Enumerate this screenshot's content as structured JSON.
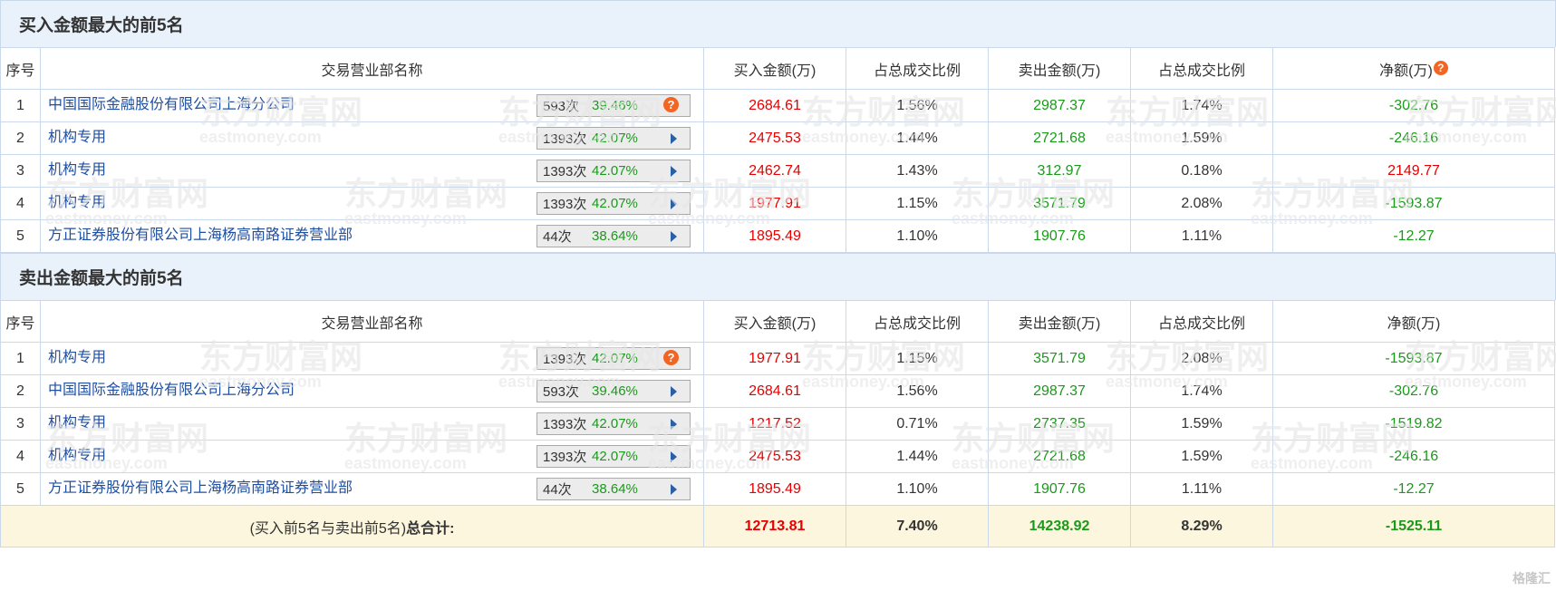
{
  "buy_section": {
    "title": "买入金额最大的前5名",
    "columns": [
      "序号",
      "交易营业部名称",
      "买入金额(万)",
      "占总成交比例",
      "卖出金额(万)",
      "占总成交比例",
      "净额(万)"
    ],
    "rows": [
      {
        "idx": "1",
        "name": "中国国际金融股份有限公司上海分公司",
        "count": "593次",
        "pct": "39.46%",
        "buy": "2684.61",
        "buy_ratio": "1.56%",
        "sell": "2987.37",
        "sell_ratio": "1.74%",
        "net": "-302.76"
      },
      {
        "idx": "2",
        "name": "机构专用",
        "count": "1393次",
        "pct": "42.07%",
        "buy": "2475.53",
        "buy_ratio": "1.44%",
        "sell": "2721.68",
        "sell_ratio": "1.59%",
        "net": "-246.16"
      },
      {
        "idx": "3",
        "name": "机构专用",
        "count": "1393次",
        "pct": "42.07%",
        "buy": "2462.74",
        "buy_ratio": "1.43%",
        "sell": "312.97",
        "sell_ratio": "0.18%",
        "net": "2149.77"
      },
      {
        "idx": "4",
        "name": "机构专用",
        "count": "1393次",
        "pct": "42.07%",
        "buy": "1977.91",
        "buy_ratio": "1.15%",
        "sell": "3571.79",
        "sell_ratio": "2.08%",
        "net": "-1593.87"
      },
      {
        "idx": "5",
        "name": "方正证券股份有限公司上海杨高南路证券营业部",
        "count": "44次",
        "pct": "38.64%",
        "buy": "1895.49",
        "buy_ratio": "1.10%",
        "sell": "1907.76",
        "sell_ratio": "1.11%",
        "net": "-12.27"
      }
    ]
  },
  "sell_section": {
    "title": "卖出金额最大的前5名",
    "columns": [
      "序号",
      "交易营业部名称",
      "买入金额(万)",
      "占总成交比例",
      "卖出金额(万)",
      "占总成交比例",
      "净额(万)"
    ],
    "rows": [
      {
        "idx": "1",
        "name": "机构专用",
        "count": "1393次",
        "pct": "42.07%",
        "buy": "1977.91",
        "buy_ratio": "1.15%",
        "sell": "3571.79",
        "sell_ratio": "2.08%",
        "net": "-1593.87"
      },
      {
        "idx": "2",
        "name": "中国国际金融股份有限公司上海分公司",
        "count": "593次",
        "pct": "39.46%",
        "buy": "2684.61",
        "buy_ratio": "1.56%",
        "sell": "2987.37",
        "sell_ratio": "1.74%",
        "net": "-302.76"
      },
      {
        "idx": "3",
        "name": "机构专用",
        "count": "1393次",
        "pct": "42.07%",
        "buy": "1217.52",
        "buy_ratio": "0.71%",
        "sell": "2737.35",
        "sell_ratio": "1.59%",
        "net": "-1519.82"
      },
      {
        "idx": "4",
        "name": "机构专用",
        "count": "1393次",
        "pct": "42.07%",
        "buy": "2475.53",
        "buy_ratio": "1.44%",
        "sell": "2721.68",
        "sell_ratio": "1.59%",
        "net": "-246.16"
      },
      {
        "idx": "5",
        "name": "方正证券股份有限公司上海杨高南路证券营业部",
        "count": "44次",
        "pct": "38.64%",
        "buy": "1895.49",
        "buy_ratio": "1.10%",
        "sell": "1907.76",
        "sell_ratio": "1.11%",
        "net": "-12.27"
      }
    ]
  },
  "total": {
    "label_prefix": "(买入前5名与卖出前5名)",
    "label_bold": "总合计:",
    "buy": "12713.81",
    "buy_ratio": "7.40%",
    "sell": "14238.92",
    "sell_ratio": "8.29%",
    "net": "-1525.11"
  },
  "help_glyph": "?",
  "watermark": {
    "cn": "东方财富网",
    "en": "eastmoney.com"
  },
  "corner_logo": "格隆汇",
  "colors": {
    "header_bg": "#e9f2fb",
    "border": "#c9d8ea",
    "buy": "#e60000",
    "sell": "#1a9a1a",
    "link": "#1f4fa0",
    "total_bg": "#fbf6dd",
    "help_icon": "#f26522"
  }
}
